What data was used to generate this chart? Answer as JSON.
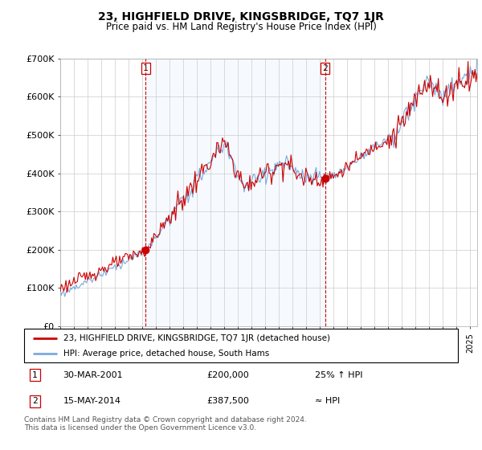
{
  "title": "23, HIGHFIELD DRIVE, KINGSBRIDGE, TQ7 1JR",
  "subtitle": "Price paid vs. HM Land Registry's House Price Index (HPI)",
  "legend_line1": "23, HIGHFIELD DRIVE, KINGSBRIDGE, TQ7 1JR (detached house)",
  "legend_line2": "HPI: Average price, detached house, South Hams",
  "sale1_date": "30-MAR-2001",
  "sale1_price": "£200,000",
  "sale1_hpi": "25% ↑ HPI",
  "sale2_date": "15-MAY-2014",
  "sale2_price": "£387,500",
  "sale2_hpi": "≈ HPI",
  "footer": "Contains HM Land Registry data © Crown copyright and database right 2024.\nThis data is licensed under the Open Government Licence v3.0.",
  "ylim": [
    0,
    700000
  ],
  "yticks": [
    0,
    100000,
    200000,
    300000,
    400000,
    500000,
    600000,
    700000
  ],
  "ytick_labels": [
    "£0",
    "£100K",
    "£200K",
    "£300K",
    "£400K",
    "£500K",
    "£600K",
    "£700K"
  ],
  "red_color": "#cc0000",
  "blue_color": "#7aaadd",
  "shade_color": "#ddeeff",
  "vline_color": "#cc0000",
  "grid_color": "#cccccc",
  "sale1_year": 2001.25,
  "sale2_year": 2014.37,
  "sale1_price_val": 200000,
  "sale2_price_val": 387500,
  "xmin": 1995,
  "xmax": 2025.5
}
